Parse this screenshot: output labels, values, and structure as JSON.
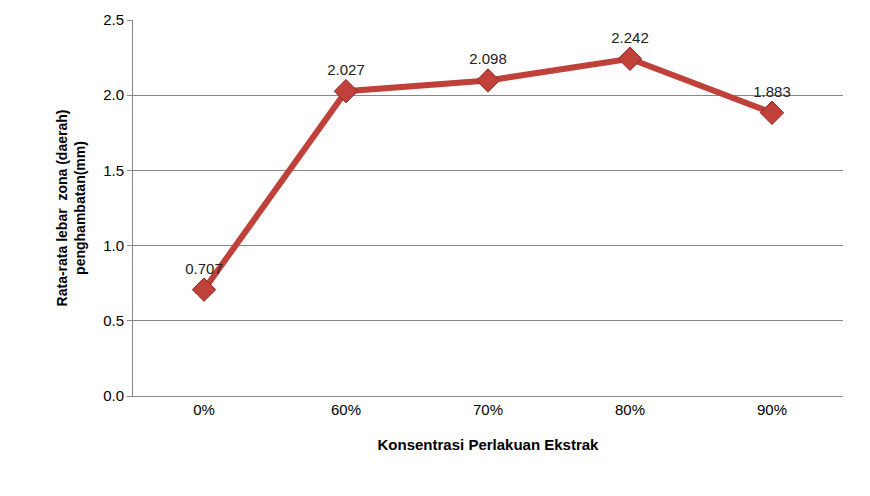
{
  "chart_data": {
    "type": "line",
    "x_label": "Konsentrasi Perlakuan Ekstrak",
    "y_label": "Rata-rata lebar  zona (daerah)\npenghambatan(mm)",
    "categories": [
      "0%",
      "60%",
      "70%",
      "80%",
      "90%"
    ],
    "values": [
      0.707,
      2.027,
      2.098,
      2.242,
      1.883
    ],
    "color": "#c0403a",
    "marker": "diamond",
    "data_labels": true,
    "ylim": [
      0,
      2.5
    ],
    "yticks": [
      {
        "value": 0,
        "label": "0.0"
      },
      0.5,
      {
        "value": 1,
        "label": "1.0"
      },
      1.5,
      {
        "value": 2,
        "label": "2.0"
      },
      2.5
    ],
    "grid": true
  }
}
